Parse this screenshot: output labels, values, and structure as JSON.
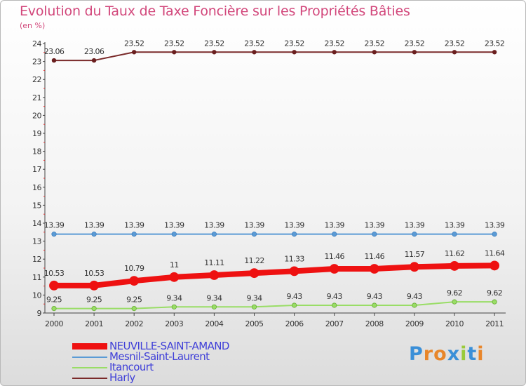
{
  "title": "Evolution du Taux de Taxe Foncière sur les Propriétés Bâties",
  "unit_label": "(en %)",
  "brand": {
    "letters": [
      "P",
      "r",
      "o",
      "x",
      "i",
      "t",
      "i"
    ],
    "colors": [
      "#3a8fd8",
      "#e8862a",
      "#e8862a",
      "#3a8fd8",
      "#9acb3a",
      "#3a8fd8",
      "#e8862a"
    ]
  },
  "chart_data": {
    "type": "line",
    "title": "Evolution du Taux de Taxe Foncière sur les Propriétés Bâties",
    "ylabel": "(en %)",
    "xlabel": "",
    "ylim": [
      9,
      24
    ],
    "yticks": [
      "9",
      "10",
      "11",
      "12",
      "13",
      "14",
      "15",
      "16",
      "17",
      "18",
      "19",
      "20",
      "21",
      "22",
      "23",
      "24"
    ],
    "x": [
      "2000",
      "2001",
      "2002",
      "2003",
      "2004",
      "2005",
      "2006",
      "2007",
      "2008",
      "2009",
      "2010",
      "2011"
    ],
    "series": [
      {
        "name": "Harly",
        "color": "#7a2a2a",
        "values": [
          23.06,
          23.06,
          23.52,
          23.52,
          23.52,
          23.52,
          23.52,
          23.52,
          23.52,
          23.52,
          23.52,
          23.52
        ],
        "labels": [
          "23.06",
          "23.06",
          "23.52",
          "23.52",
          "23.52",
          "23.52",
          "23.52",
          "23.52",
          "23.52",
          "23.52",
          "23.52",
          "23.52"
        ]
      },
      {
        "name": "Mesnil-Saint-Laurent",
        "color": "#5b9bd5",
        "values": [
          13.39,
          13.39,
          13.39,
          13.39,
          13.39,
          13.39,
          13.39,
          13.39,
          13.39,
          13.39,
          13.39,
          13.39
        ],
        "labels": [
          "13.39",
          "13.39",
          "13.39",
          "13.39",
          "13.39",
          "13.39",
          "13.39",
          "13.39",
          "13.39",
          "13.39",
          "13.39",
          "13.39"
        ]
      },
      {
        "name": "NEUVILLE-SAINT-AMAND",
        "color": "#ee1111",
        "values": [
          10.53,
          10.53,
          10.79,
          11.0,
          11.11,
          11.22,
          11.33,
          11.46,
          11.46,
          11.57,
          11.62,
          11.64
        ],
        "labels": [
          "10.53",
          "10.53",
          "10.79",
          "11",
          "11.11",
          "11.22",
          "11.33",
          "11.46",
          "11.46",
          "11.57",
          "11.62",
          "11.64"
        ]
      },
      {
        "name": "Itancourt",
        "color": "#99dd66",
        "values": [
          9.25,
          9.25,
          9.25,
          9.34,
          9.34,
          9.34,
          9.43,
          9.43,
          9.43,
          9.43,
          9.62,
          9.62
        ],
        "labels": [
          "9.25",
          "9.25",
          "9.25",
          "9.34",
          "9.34",
          "9.34",
          "9.43",
          "9.43",
          "9.43",
          "9.43",
          "9.62",
          "9.62"
        ]
      }
    ],
    "legend": {
      "position": "bottom-left",
      "entries": [
        "NEUVILLE-SAINT-AMAND",
        "Mesnil-Saint-Laurent",
        "Itancourt",
        "Harly"
      ],
      "colors": [
        "#ee1111",
        "#5b9bd5",
        "#99dd66",
        "#7a2a2a"
      ]
    }
  }
}
